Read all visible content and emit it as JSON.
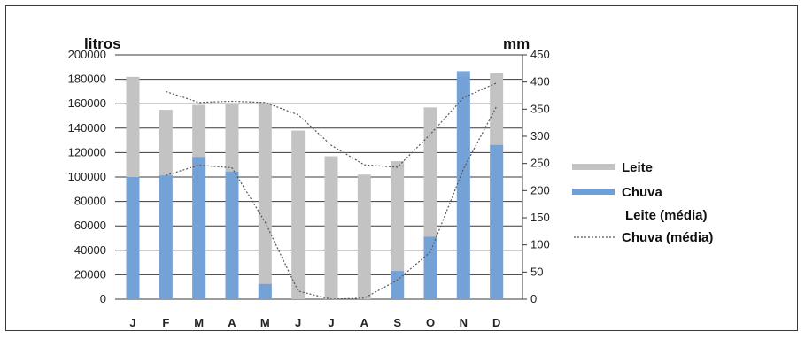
{
  "chart_data": {
    "type": "bar",
    "categories": [
      "J",
      "F",
      "M",
      "A",
      "M",
      "J",
      "J",
      "A",
      "S",
      "O",
      "N",
      "D"
    ],
    "y_left_label": "litros",
    "y_right_label": "mm",
    "y_left_ticks": [
      "200000",
      "180000",
      "160000",
      "140000",
      "120000",
      "100000",
      "80000",
      "60000",
      "40000",
      "20000",
      "0"
    ],
    "y_right_ticks": [
      "450",
      "400",
      "350",
      "300",
      "250",
      "200",
      "150",
      "100",
      "50",
      "0"
    ],
    "ylim_left": [
      0,
      200000
    ],
    "ylim_right": [
      0,
      450
    ],
    "grid": true,
    "legend_position": "right",
    "series": [
      {
        "name": "Leite",
        "kind": "bar",
        "axis": "left",
        "color": "#c3c3c3",
        "values": [
          182000,
          155000,
          159000,
          160000,
          161000,
          138000,
          117000,
          102000,
          113000,
          157000,
          182000,
          185000
        ]
      },
      {
        "name": "Chuva",
        "kind": "bar",
        "axis": "right",
        "color": "#6f9fd8",
        "values": [
          225,
          228,
          262,
          235,
          28,
          0,
          0,
          0,
          52,
          115,
          420,
          284
        ]
      },
      {
        "name": "Leite (média)",
        "kind": "line",
        "axis": "left",
        "color": "#555555",
        "values": [
          null,
          170000,
          161000,
          162000,
          161000,
          151000,
          126000,
          110000,
          108000,
          135000,
          165000,
          177000
        ]
      },
      {
        "name": "Chuva (média)",
        "kind": "line",
        "axis": "right",
        "color": "#555555",
        "values": [
          null,
          228,
          247,
          242,
          142,
          15,
          0,
          2,
          35,
          87,
          240,
          355
        ]
      }
    ]
  }
}
